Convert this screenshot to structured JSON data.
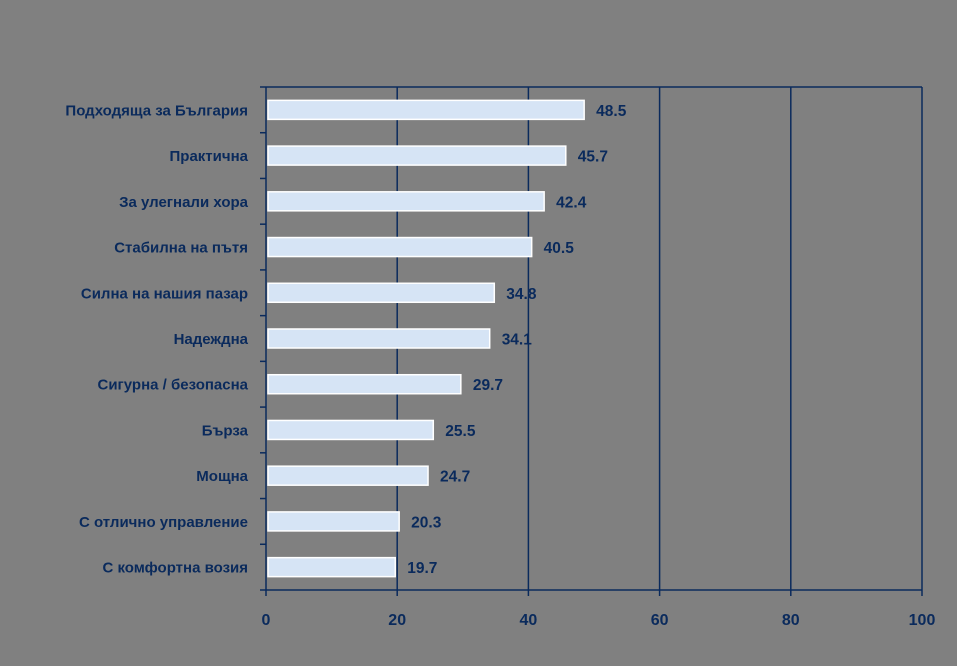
{
  "chart_data": {
    "type": "bar",
    "orientation": "horizontal",
    "title": "",
    "xlabel": "",
    "ylabel": "",
    "xlim": [
      0,
      100
    ],
    "x_ticks": [
      0,
      20,
      40,
      60,
      80,
      100
    ],
    "x_tick_labels": [
      "0",
      "20",
      "40",
      "60",
      "80",
      "100"
    ],
    "grid": "vertical",
    "legend": "none",
    "categories": [
      "Подходяща за България",
      "Практична",
      "За улегнали хора",
      "Стабилна на пътя",
      "Силна на нашия пазар",
      "Надеждна",
      "Сигурна / безопасна",
      "Бърза",
      "Мощна",
      "С отлично управление",
      "С комфортна возия"
    ],
    "values": [
      48.5,
      45.7,
      42.4,
      40.5,
      34.8,
      34.1,
      29.7,
      25.5,
      24.7,
      20.3,
      19.7
    ],
    "value_labels": [
      "48.5",
      "45.7",
      "42.4",
      "40.5",
      "34.8",
      "34.1",
      "29.7",
      "25.5",
      "24.7",
      "20.3",
      "19.7"
    ],
    "colors": {
      "background": "#808080",
      "bar_fill": "#d6e4f5",
      "bar_stroke": "#ffffff",
      "axis": "#0a2a5c",
      "text": "#0a2a5c"
    }
  }
}
